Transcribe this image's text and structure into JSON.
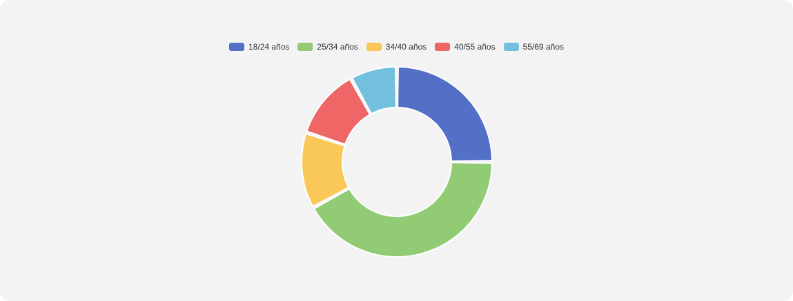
{
  "chart_data": {
    "type": "pie",
    "variant": "doughnut",
    "categories": [
      "18/24 años",
      "25/34 años",
      "34/40 años",
      "40/55 años",
      "55/69 años"
    ],
    "values": [
      25,
      42,
      13,
      12,
      8
    ],
    "colors": [
      "#5470c6",
      "#91cc75",
      "#fac858",
      "#ee6666",
      "#73c0de"
    ],
    "legend_position": "top-center"
  }
}
